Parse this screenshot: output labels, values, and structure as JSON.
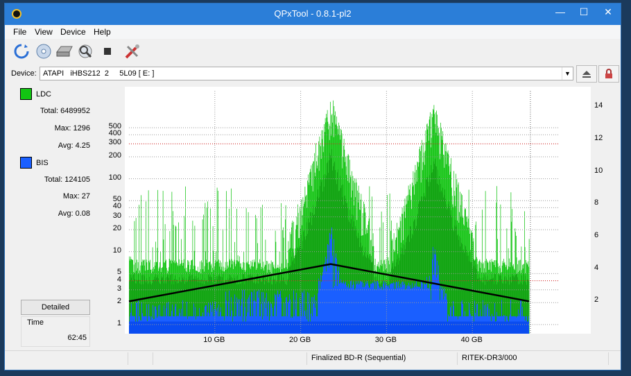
{
  "window": {
    "title": "QPxTool - 0.8.1-pl2"
  },
  "menu": [
    "File",
    "View",
    "Device",
    "Help"
  ],
  "toolbar": {
    "icons": [
      "refresh-icon",
      "disc-info-icon",
      "drive-icon",
      "scan-icon",
      "stop-icon",
      "settings-tools-icon"
    ]
  },
  "device": {
    "label": "Device:",
    "value": "ATAPI   iHBS212  2     5L09 [ E: ]"
  },
  "legend": {
    "ldc": {
      "name": "LDC",
      "color": "#12c412",
      "total_label": "Total:",
      "total": "6489952",
      "max_label": "Max:",
      "max": "1296",
      "avg_label": "Avg:",
      "avg": "4.25"
    },
    "bis": {
      "name": "BIS",
      "color": "#1a5fff",
      "total_label": "Total:",
      "total": "124105",
      "max_label": "Max:",
      "max": "27",
      "avg_label": "Avg:",
      "avg": "0.08"
    }
  },
  "detailed_button": "Detailed",
  "time": {
    "label": "Time",
    "value": "62:45"
  },
  "status": {
    "cells": [
      "",
      "",
      "",
      "Finalized BD-R (Sequential)",
      "RITEK-DR3/000"
    ]
  },
  "chart_data": {
    "type": "bar",
    "x_unit": "GB",
    "x_ticks": [
      "10 GB",
      "20 GB",
      "30 GB",
      "40 GB"
    ],
    "x_tick_values": [
      10,
      20,
      30,
      40
    ],
    "xlim": [
      0,
      50
    ],
    "x_end": 46.6,
    "y_left_scale": "log",
    "y_left_ticks": [
      "1",
      "2",
      "3",
      "4",
      "5",
      "10",
      "20",
      "30",
      "40",
      "50",
      "100",
      "200",
      "300",
      "400",
      "500"
    ],
    "y_left_values": [
      1,
      2,
      3,
      4,
      5,
      10,
      20,
      30,
      40,
      50,
      100,
      200,
      300,
      400,
      500
    ],
    "y_right_ticks": [
      "2",
      "4",
      "6",
      "8",
      "10",
      "12",
      "14"
    ],
    "y_right_values": [
      2,
      4,
      6,
      8,
      10,
      12,
      14
    ],
    "ylim_right": [
      0,
      15
    ],
    "grid": true,
    "series": [
      {
        "name": "LDC",
        "color": "#12c412",
        "typical": 5,
        "peak_regions": [
          [
            23.5,
            1296
          ],
          [
            35.5,
            1000
          ]
        ]
      },
      {
        "name": "BIS",
        "color": "#1a5fff",
        "typical": 1,
        "max": 27
      },
      {
        "name": "Speed",
        "color": "#000000",
        "x": [
          0,
          23.5,
          46.6
        ],
        "y": [
          2.0,
          4.3,
          2.0
        ]
      }
    ]
  }
}
